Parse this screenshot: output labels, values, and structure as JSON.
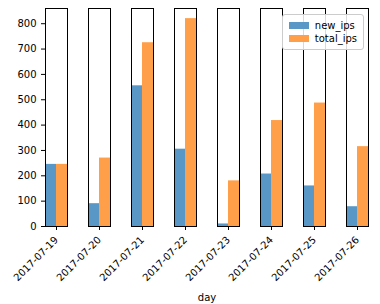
{
  "chart_data": {
    "type": "bar",
    "categories": [
      "2017-07-19",
      "2017-07-20",
      "2017-07-21",
      "2017-07-22",
      "2017-07-23",
      "2017-07-24",
      "2017-07-25",
      "2017-07-26"
    ],
    "series": [
      {
        "name": "new_ips",
        "color": "#5897c6",
        "values": [
          245,
          90,
          555,
          305,
          10,
          207,
          160,
          78
        ]
      },
      {
        "name": "total_ips",
        "color": "#ff9f4a",
        "values": [
          245,
          270,
          725,
          820,
          180,
          418,
          487,
          315
        ]
      }
    ],
    "x_label": "day",
    "ylim": [
      0,
      860
    ],
    "yticks": [
      0,
      100,
      200,
      300,
      400,
      500,
      600,
      700,
      800
    ],
    "legend": "upper right",
    "grid": false
  }
}
